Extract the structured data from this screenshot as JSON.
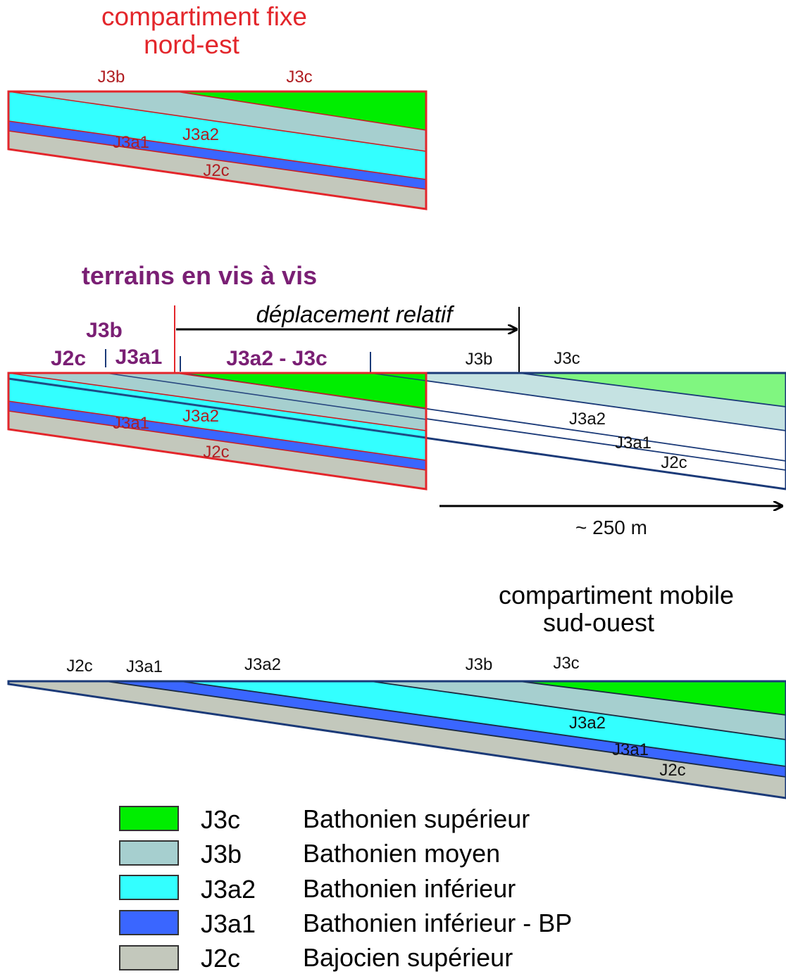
{
  "colors": {
    "J3c": "#00ee00",
    "J3c_light": "#80f680",
    "J3b": "#a6cfcf",
    "J3a2": "#33ffff",
    "J3a1": "#3a66ff",
    "J2c": "#c3c8bc",
    "fixed_outline": "#e3262b",
    "mobile_outline": "#1b3a78"
  },
  "panel1": {
    "title_line1": "compartiment fixe",
    "title_line2": "nord-est",
    "top_labels": [
      "J3b",
      "J3c"
    ],
    "inner_labels": [
      "J3a2",
      "J3a1",
      "J2c"
    ]
  },
  "panel2": {
    "title": "terrains en vis à vis",
    "label_j3b": "J3b",
    "label_j2c": "J2c",
    "label_j3a1": "J3a1",
    "label_j3a2_j3c": "J3a2 - J3c",
    "top_labels_right": [
      "J3b",
      "J3c"
    ],
    "displacement_label": "déplacement relatif",
    "inner_labels_fixed": [
      "J3a2",
      "J3a1",
      "J2c"
    ],
    "inner_labels_mobile": [
      "J3a2",
      "J3a1",
      "J2c"
    ],
    "distance_label": "~  250 m"
  },
  "panel3": {
    "title_line1": "compartiment mobile",
    "title_line2": "sud-ouest",
    "top_labels": [
      "J2c",
      "J3a1",
      "J3a2",
      "J3b",
      "J3c"
    ],
    "inner_labels": [
      "J3a2",
      "J3a1",
      "J2c"
    ]
  },
  "legend": [
    {
      "code": "J3c",
      "description": "Bathonien supérieur",
      "color": "#00ee00"
    },
    {
      "code": "J3b",
      "description": "Bathonien moyen",
      "color": "#a6cfcf"
    },
    {
      "code": "J3a2",
      "description": "Bathonien inférieur",
      "color": "#33ffff"
    },
    {
      "code": "J3a1",
      "description": "Bathonien inférieur - BP",
      "color": "#3a66ff"
    },
    {
      "code": "J2c",
      "description": "Bajocien supérieur",
      "color": "#c3c8bc"
    }
  ]
}
